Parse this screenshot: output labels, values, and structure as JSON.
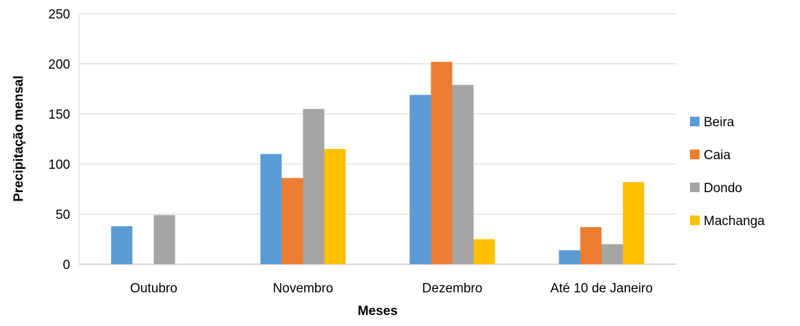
{
  "chart_data": {
    "type": "bar",
    "title": "",
    "xlabel": "Meses",
    "ylabel": "Precipitação mensal",
    "ylim": [
      0,
      250
    ],
    "yticks": [
      0,
      50,
      100,
      150,
      200,
      250
    ],
    "grid": true,
    "legend_position": "right",
    "categories": [
      "Outubro",
      "Novembro",
      "Dezembro",
      "Até 10 de Janeiro"
    ],
    "series": [
      {
        "name": "Beira",
        "color": "#5B9BD5",
        "values": [
          38,
          110,
          169,
          14
        ]
      },
      {
        "name": "Caia",
        "color": "#ED7D31",
        "values": [
          0,
          86,
          202,
          37
        ]
      },
      {
        "name": "Dondo",
        "color": "#A5A5A5",
        "values": [
          49,
          155,
          179,
          20
        ]
      },
      {
        "name": "Machanga",
        "color": "#FFC000",
        "values": [
          0,
          115,
          25,
          82
        ]
      }
    ]
  }
}
